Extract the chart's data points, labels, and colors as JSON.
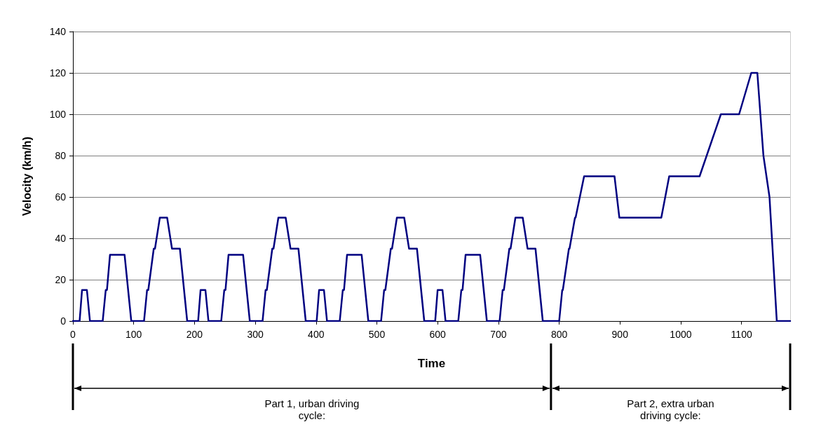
{
  "chart_data": {
    "type": "line",
    "xlabel": "Time",
    "ylabel": "Velocity (km/h)",
    "series": [
      {
        "color": "#000080",
        "x": [
          0,
          11,
          15,
          23,
          28,
          49,
          54,
          56,
          61,
          85,
          96,
          117,
          122,
          124,
          133,
          135,
          143,
          155,
          163,
          176,
          188,
          195,
          206,
          210,
          218,
          223,
          244,
          249,
          251,
          256,
          280,
          291,
          312,
          317,
          319,
          328,
          330,
          338,
          350,
          358,
          371,
          383,
          390,
          401,
          405,
          413,
          418,
          439,
          444,
          446,
          451,
          475,
          486,
          507,
          512,
          514,
          523,
          525,
          533,
          545,
          553,
          566,
          578,
          585,
          596,
          600,
          608,
          613,
          634,
          639,
          641,
          646,
          670,
          681,
          702,
          707,
          709,
          718,
          720,
          728,
          740,
          748,
          761,
          773,
          800,
          805,
          806,
          816,
          817,
          826,
          827,
          841,
          891,
          899,
          968,
          981,
          1031,
          1066,
          1096,
          1116,
          1126,
          1131,
          1136,
          1146,
          1150,
          1154,
          1158,
          1180
        ],
        "values": [
          0,
          0,
          15,
          15,
          0,
          0,
          15,
          15,
          32,
          32,
          0,
          0,
          15,
          15,
          35,
          35,
          50,
          50,
          35,
          35,
          0,
          0,
          0,
          15,
          15,
          0,
          0,
          15,
          15,
          32,
          32,
          0,
          0,
          15,
          15,
          35,
          35,
          50,
          50,
          35,
          35,
          0,
          0,
          0,
          15,
          15,
          0,
          0,
          15,
          15,
          32,
          32,
          0,
          0,
          15,
          15,
          35,
          35,
          50,
          50,
          35,
          35,
          0,
          0,
          0,
          15,
          15,
          0,
          0,
          15,
          15,
          32,
          32,
          0,
          0,
          15,
          15,
          35,
          35,
          50,
          50,
          35,
          35,
          0,
          0,
          15,
          15,
          35,
          35,
          50,
          50,
          70,
          70,
          50,
          50,
          70,
          70,
          100,
          100,
          120,
          120,
          100,
          80,
          60,
          40,
          20,
          0,
          0
        ]
      }
    ],
    "xlim": [
      0,
      1180
    ],
    "xticks": [
      0,
      100,
      200,
      300,
      400,
      500,
      600,
      700,
      800,
      900,
      1000,
      1100
    ],
    "ylim": [
      0,
      140
    ],
    "yticks": [
      0,
      20,
      40,
      60,
      80,
      100,
      120,
      140
    ],
    "grid": "y",
    "marker": "none",
    "line_style": "solid",
    "annotations": [
      "Part 1, urban driving cycle:",
      "Part 2, extra urban driving cycle:"
    ]
  }
}
